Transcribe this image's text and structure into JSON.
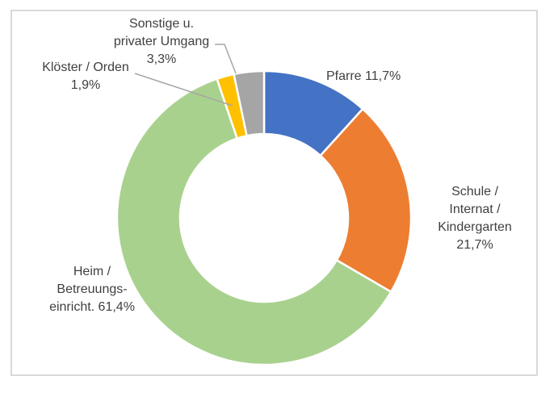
{
  "chart_data": {
    "type": "pie",
    "subtype": "donut",
    "title": "",
    "categories": [
      "Pfarre",
      "Schule / Internat / Kindergarten",
      "Heim / Betreuungseinricht.",
      "Kloester / Orden",
      "Sonstige u. privater Umgang"
    ],
    "values": [
      11.7,
      21.7,
      61.4,
      1.9,
      3.3
    ],
    "unit": "%",
    "colors": [
      "#4472C4",
      "#ED7D31",
      "#A9D18E",
      "#FFC000",
      "#A5A5A5"
    ],
    "legend": "none",
    "data_labels": "category name + percentage, outside with leader lines for small slices",
    "hole_ratio": 0.57
  },
  "labels": {
    "pfarre": "Pfarre 11,7%",
    "schule": "Schule / Internat /\nKindergarten 21,7%",
    "heim": "Heim /\nBetreuungs-\neinricht. 61,4%",
    "kloester": "Klöster / Orden\n1,9%",
    "sonstige": "Sonstige u.\nprivater Umgang\n3,3%"
  },
  "style": {
    "label_color": "#404040",
    "leader_line_color": "#A6A6A6",
    "frame_border_color": "#D9D9D9",
    "slice_separator_color": "#FFFFFF",
    "background": "#FFFFFF"
  }
}
